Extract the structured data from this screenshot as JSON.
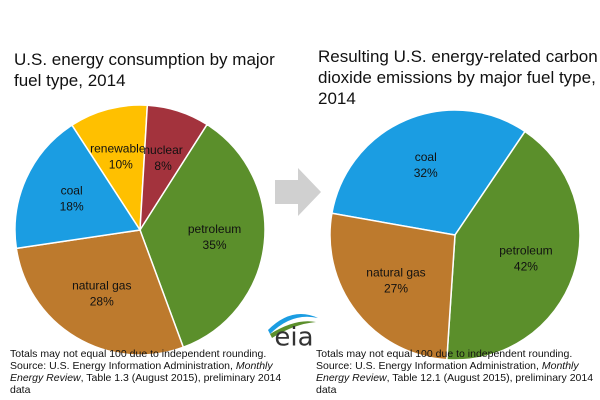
{
  "chart_data": [
    {
      "type": "pie",
      "title": "U.S. energy consumption by major fuel type, 2014",
      "categories": [
        "renewables",
        "nuclear",
        "petroleum",
        "natural gas",
        "coal"
      ],
      "values": [
        10,
        8,
        35,
        28,
        18
      ],
      "value_labels": [
        "10%",
        "8%",
        "35%",
        "28%",
        "18%"
      ],
      "colors": [
        "#ffc000",
        "#a3333d",
        "#5b8f2b",
        "#bd7a2d",
        "#1b9de2"
      ],
      "note": "Totals may not equal 100 due to independent rounding.",
      "source": [
        "Source: U.S. Energy Information Administration, ",
        "Monthly Energy Review",
        ", Table 1.3 (August 2015), preliminary 2014 data"
      ]
    },
    {
      "type": "pie",
      "title": "Resulting U.S. energy-related carbon dioxide emissions by major fuel type, 2014",
      "categories": [
        "coal",
        "petroleum",
        "natural gas"
      ],
      "values": [
        32,
        42,
        27
      ],
      "value_labels": [
        "32%",
        "42%",
        "27%"
      ],
      "colors": [
        "#1b9de2",
        "#5b8f2b",
        "#bd7a2d"
      ],
      "note": "Totals may not equal 100 due to independent rounding.",
      "source": [
        "Source: U.S. Energy Information Administration, ",
        "Monthly Energy Review",
        ", Table 12.1 (August 2015), preliminary 2014 data"
      ]
    }
  ],
  "logo": "eia"
}
